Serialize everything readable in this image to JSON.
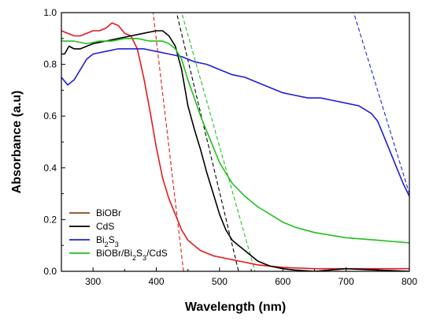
{
  "chart_data": {
    "type": "line",
    "xlabel": "Wavelength (nm)",
    "ylabel": "Absorbance (a.u)",
    "xlim": [
      250,
      800
    ],
    "ylim": [
      0.0,
      1.0
    ],
    "xticks": [
      300,
      400,
      500,
      600,
      700,
      800
    ],
    "xtick_labels": [
      "300",
      "400",
      "500",
      "600",
      "700",
      "800"
    ],
    "yticks": [
      0.0,
      0.2,
      0.4,
      0.6,
      0.8,
      1.0
    ],
    "ytick_labels": [
      "0.0",
      "0.2",
      "0.4",
      "0.6",
      "0.8",
      "1.0"
    ],
    "legend_position": "bottom-left",
    "series": [
      {
        "name": "BiOBr",
        "legend_label": "BiOBr",
        "color": "#e4191b",
        "x": [
          250,
          260,
          270,
          280,
          290,
          300,
          310,
          320,
          330,
          340,
          350,
          360,
          370,
          380,
          390,
          400,
          410,
          420,
          430,
          440,
          450,
          460,
          470,
          480,
          490,
          500,
          510,
          520,
          530,
          540,
          550,
          560,
          580,
          600,
          650,
          700,
          750,
          800
        ],
        "values": [
          0.93,
          0.92,
          0.91,
          0.91,
          0.92,
          0.93,
          0.93,
          0.94,
          0.96,
          0.95,
          0.92,
          0.91,
          0.86,
          0.75,
          0.62,
          0.48,
          0.36,
          0.28,
          0.22,
          0.16,
          0.12,
          0.1,
          0.08,
          0.07,
          0.06,
          0.055,
          0.05,
          0.045,
          0.04,
          0.035,
          0.03,
          0.025,
          0.02,
          0.015,
          0.01,
          0.01,
          0.01,
          0.01
        ],
        "tangent": [
          [
            395,
            1.0
          ],
          [
            443,
            0.0
          ]
        ]
      },
      {
        "name": "CdS",
        "legend_label": "CdS",
        "color": "#000000",
        "x": [
          250,
          255,
          262,
          270,
          280,
          290,
          300,
          320,
          340,
          360,
          380,
          400,
          410,
          420,
          430,
          440,
          450,
          460,
          470,
          480,
          490,
          500,
          510,
          520,
          530,
          540,
          550,
          560,
          570,
          580,
          600,
          620,
          650,
          700,
          750,
          800
        ],
        "values": [
          0.84,
          0.84,
          0.87,
          0.86,
          0.86,
          0.87,
          0.88,
          0.89,
          0.9,
          0.91,
          0.92,
          0.93,
          0.93,
          0.91,
          0.87,
          0.78,
          0.64,
          0.55,
          0.47,
          0.38,
          0.3,
          0.22,
          0.16,
          0.12,
          0.1,
          0.08,
          0.06,
          0.04,
          0.03,
          0.02,
          0.01,
          0.005,
          0.0,
          0.01,
          0.005,
          0.0
        ],
        "tangent": [
          [
            432,
            1.0
          ],
          [
            530,
            0.0
          ]
        ]
      },
      {
        "name": "Bi2S3",
        "legend_label": "Bi2S3",
        "color": "#1f1fd8",
        "x": [
          250,
          260,
          270,
          280,
          290,
          300,
          320,
          340,
          360,
          380,
          400,
          420,
          440,
          460,
          480,
          500,
          520,
          540,
          560,
          580,
          600,
          620,
          640,
          660,
          680,
          700,
          720,
          740,
          750,
          760,
          770,
          780,
          790,
          800
        ],
        "values": [
          0.75,
          0.72,
          0.74,
          0.78,
          0.82,
          0.84,
          0.85,
          0.86,
          0.86,
          0.86,
          0.85,
          0.84,
          0.83,
          0.81,
          0.8,
          0.78,
          0.76,
          0.75,
          0.73,
          0.71,
          0.69,
          0.68,
          0.67,
          0.67,
          0.66,
          0.65,
          0.64,
          0.61,
          0.58,
          0.52,
          0.46,
          0.4,
          0.34,
          0.29
        ],
        "tangent": [
          [
            712,
            1.0
          ],
          [
            800,
            0.3
          ]
        ]
      },
      {
        "name": "BiOBr/Bi2S3/CdS",
        "legend_label": "BiOBr/Bi2S3/CdS",
        "color": "#22c01e",
        "x": [
          250,
          270,
          290,
          310,
          330,
          350,
          370,
          390,
          400,
          410,
          420,
          430,
          440,
          450,
          460,
          470,
          480,
          490,
          500,
          510,
          520,
          540,
          560,
          580,
          600,
          620,
          650,
          700,
          750,
          800
        ],
        "values": [
          0.89,
          0.89,
          0.88,
          0.89,
          0.89,
          0.9,
          0.9,
          0.89,
          0.89,
          0.89,
          0.88,
          0.86,
          0.82,
          0.74,
          0.67,
          0.6,
          0.54,
          0.48,
          0.42,
          0.38,
          0.34,
          0.29,
          0.25,
          0.22,
          0.19,
          0.17,
          0.15,
          0.13,
          0.12,
          0.11
        ],
        "tangent": [
          [
            440,
            1.0
          ],
          [
            556,
            0.0
          ]
        ]
      }
    ]
  }
}
